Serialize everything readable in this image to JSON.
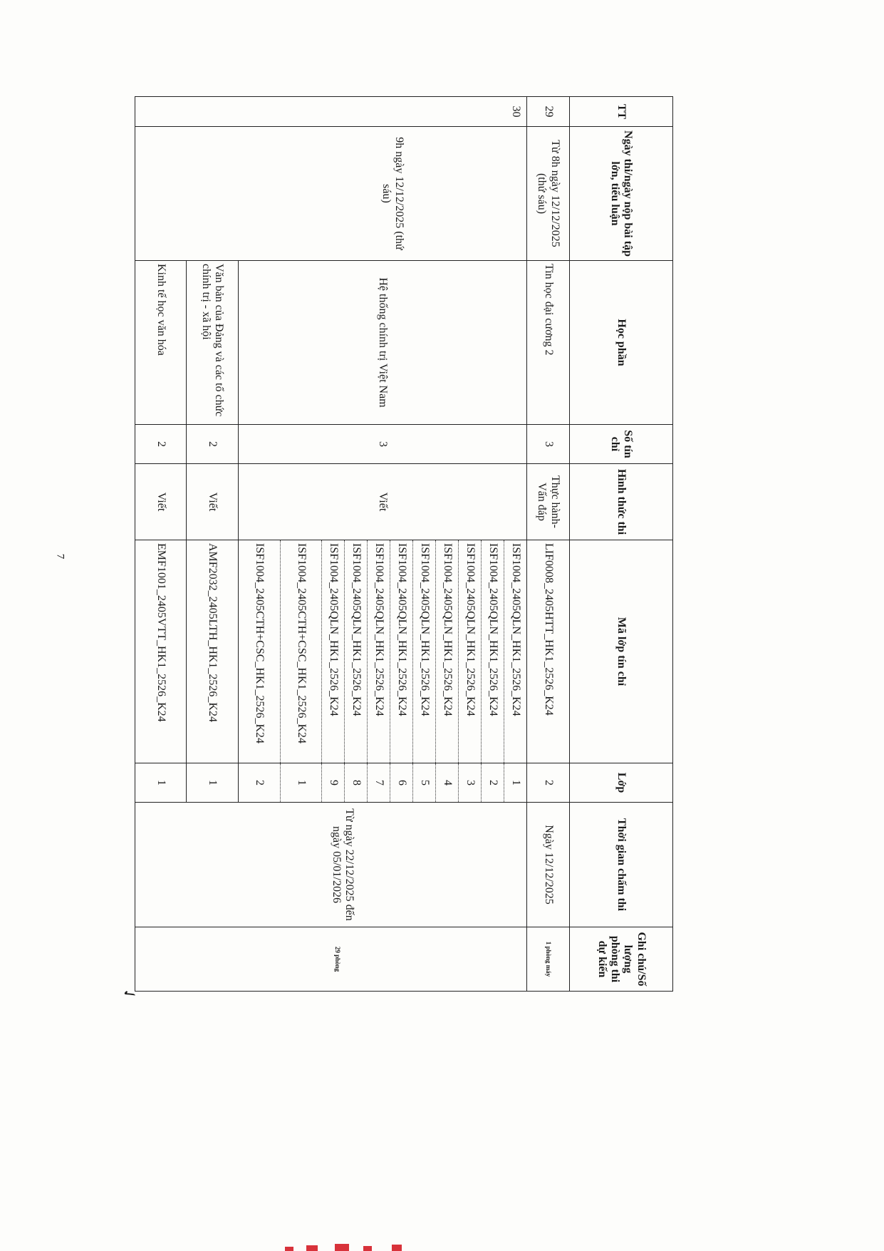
{
  "header": {
    "tt": "TT",
    "date": "Ngày thi/ngày nộp bài tập lớn, tiểu luận",
    "course": "Học phần",
    "credits": "Số tín chỉ",
    "format": "Hình thức thi",
    "class_code": "Mã lớp tín chỉ",
    "group": "Lớp",
    "grading_time": "Thời gian chấm thi",
    "note": "Ghi chú/Số lượng phòng thi dự kiến"
  },
  "row29": {
    "tt": "29",
    "date": "Từ 8h ngày 12/12/2025 (thứ sáu)",
    "course": "Tin học đại cương 2",
    "credits": "3",
    "format": "Thực hành-Vấn đáp",
    "class_code": "LIF0008_2405HTT_HK1_2526_K24",
    "group": "2",
    "grading_time": "Ngày 12/12/2025",
    "note": "1 phòng máy"
  },
  "row30": {
    "tt": "30",
    "date": "9h ngày 12/12/2025 (thứ sáu)",
    "grading_time": "Từ ngày 22/12/2025 đến ngày 05/01/2026",
    "note": "29 phòng",
    "courses": [
      {
        "course": "Hệ thống chính trị Việt Nam",
        "credits": "3",
        "format": "Viết",
        "classes": [
          {
            "code": "ISF1004_2405QLN_HK1_2526_K24",
            "group": "1"
          },
          {
            "code": "ISF1004_2405QLN_HK1_2526_K24",
            "group": "2"
          },
          {
            "code": "ISF1004_2405QLN_HK1_2526_K24",
            "group": "3"
          },
          {
            "code": "ISF1004_2405QLN_HK1_2526_K24",
            "group": "4"
          },
          {
            "code": "ISF1004_2405QLN_HK1_2526_K24",
            "group": "5"
          },
          {
            "code": "ISF1004_2405QLN_HK1_2526_K24",
            "group": "6"
          },
          {
            "code": "ISF1004_2405QLN_HK1_2526_K24",
            "group": "7"
          },
          {
            "code": "ISF1004_2405QLN_HK1_2526_K24",
            "group": "8"
          },
          {
            "code": "ISF1004_2405QLN_HK1_2526_K24",
            "group": "9"
          },
          {
            "code": "ISF1004_2405CTH+CSC_HK1_2526_K24",
            "group": "1"
          },
          {
            "code": "ISF1004_2405CTH+CSC_HK1_2526_K24",
            "group": "2"
          }
        ]
      },
      {
        "course": "Văn bản của Đảng và các tổ chức chính trị - xã hội",
        "credits": "2",
        "format": "Viết",
        "classes": [
          {
            "code": "AMF2032_2405LTH_HK1_2526_K24",
            "group": "1"
          }
        ]
      },
      {
        "course": "Kinh tế học văn hóa",
        "credits": "2",
        "format": "Viết",
        "classes": [
          {
            "code": "EMF1001_2405VTT_HK1_2526_K24",
            "group": "1"
          }
        ]
      }
    ]
  },
  "page_number": "7"
}
